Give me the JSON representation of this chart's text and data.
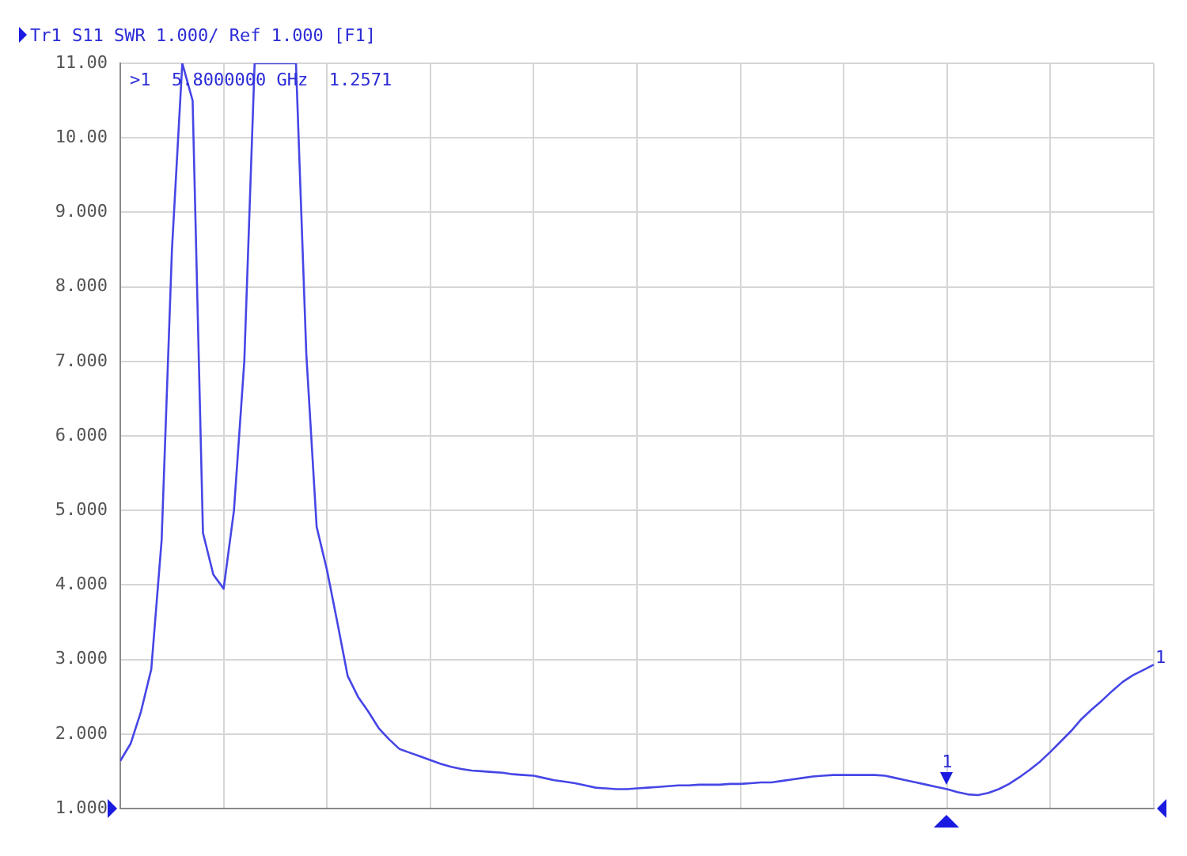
{
  "chart_data": {
    "type": "line",
    "title": "Tr1 S11 SWR 1.000/ Ref 1.000 [F1]",
    "categories": [
      null,
      null,
      null,
      null,
      null,
      null,
      null,
      null,
      null,
      null,
      null,
      null,
      null,
      null,
      null,
      null,
      null,
      null,
      null,
      null,
      null,
      null,
      null,
      null,
      null,
      null,
      null,
      null,
      null,
      null,
      null,
      null,
      null,
      null,
      null,
      null,
      null,
      null,
      null,
      null,
      null,
      null,
      null,
      null,
      null,
      null,
      null,
      null,
      null,
      null,
      null,
      null,
      null,
      null,
      null,
      null,
      null,
      null,
      null,
      null,
      null,
      null,
      null,
      null,
      null,
      null,
      null,
      null,
      null,
      null,
      null,
      null,
      null,
      null,
      null,
      null,
      null,
      null,
      null,
      null,
      null,
      null,
      null,
      null,
      null,
      null,
      null,
      null,
      null,
      null,
      null,
      null,
      null,
      null,
      null,
      null,
      null,
      null,
      null,
      null,
      null
    ],
    "series": [
      {
        "color": "#4646e6",
        "values": [
          1.64,
          1.87,
          2.3,
          2.87,
          4.6,
          8.5,
          11,
          10.5,
          4.7,
          4.14,
          3.95,
          5.0,
          7.0,
          11,
          11,
          11,
          11,
          11,
          7.1,
          4.78,
          4.2,
          3.5,
          2.78,
          2.5,
          2.3,
          2.08,
          1.93,
          1.8,
          1.75,
          1.7,
          1.65,
          1.6,
          1.56,
          1.53,
          1.51,
          1.5,
          1.49,
          1.48,
          1.46,
          1.45,
          1.44,
          1.41,
          1.38,
          1.36,
          1.34,
          1.31,
          1.28,
          1.27,
          1.26,
          1.26,
          1.27,
          1.28,
          1.29,
          1.3,
          1.31,
          1.31,
          1.32,
          1.32,
          1.32,
          1.33,
          1.33,
          1.34,
          1.35,
          1.35,
          1.37,
          1.39,
          1.41,
          1.43,
          1.44,
          1.45,
          1.45,
          1.45,
          1.45,
          1.45,
          1.44,
          1.41,
          1.38,
          1.35,
          1.32,
          1.29,
          1.26,
          1.22,
          1.19,
          1.18,
          1.21,
          1.26,
          1.33,
          1.42,
          1.52,
          1.63,
          1.76,
          1.9,
          2.04,
          2.2,
          2.33,
          2.45,
          2.58,
          2.7,
          2.79,
          2.86,
          2.93
        ]
      }
    ],
    "ylim": [
      1,
      11
    ],
    "yticks": [
      {
        "value": 1,
        "label": "1.000"
      },
      {
        "value": 2,
        "label": "2.000"
      },
      {
        "value": 3,
        "label": "3.000"
      },
      {
        "value": 4,
        "label": "4.000"
      },
      {
        "value": 5,
        "label": "5.000"
      },
      {
        "value": 6,
        "label": "6.000"
      },
      {
        "value": 7,
        "label": "7.000"
      },
      {
        "value": 8,
        "label": "8.000"
      },
      {
        "value": 9,
        "label": "9.000"
      },
      {
        "value": 10,
        "label": "10.00"
      },
      {
        "value": 11,
        "label": "11.00"
      }
    ],
    "tick_labels": "y",
    "grid": true,
    "legend": false,
    "marker": "none",
    "line_style": "solid",
    "annotations": [
      ">1  5.8000000 GHz  1.2571",
      "1",
      "1"
    ]
  }
}
